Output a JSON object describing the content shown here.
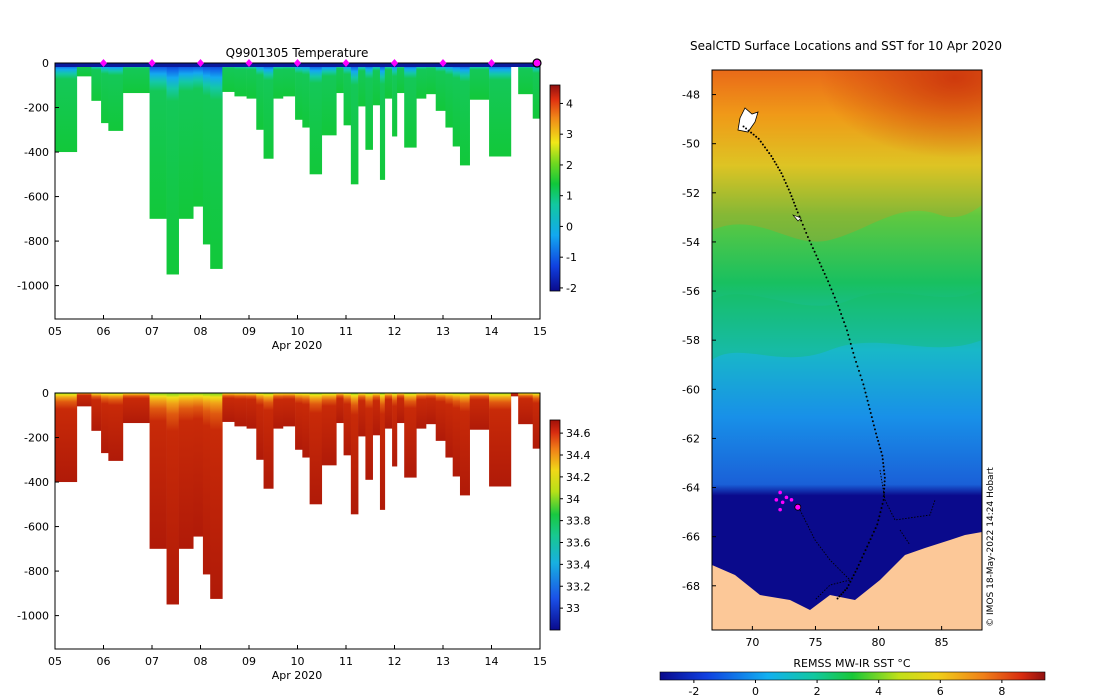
{
  "chart_data": [
    {
      "type": "heatmap",
      "title": "Q9901305  Temperature",
      "xlabel": "Apr 2020",
      "ylabel": "",
      "x_ticks": [
        "05",
        "06",
        "07",
        "08",
        "09",
        "10",
        "11",
        "12",
        "13",
        "14",
        "15"
      ],
      "y_ticks": [
        0,
        -200,
        -400,
        -600,
        -800,
        -1000
      ],
      "ylim": [
        -1150,
        0
      ],
      "xlim": [
        5,
        15
      ],
      "colorbar": {
        "ticks": [
          4,
          3,
          2,
          1,
          0,
          -1,
          -2
        ],
        "range": [
          -2.1,
          4.6
        ]
      },
      "profile_markers_days": [
        6,
        7,
        8,
        9,
        10,
        11,
        12,
        13,
        14
      ],
      "profiles": [
        {
          "t0": 5.0,
          "t1": 5.45,
          "depth": 400
        },
        {
          "t0": 5.45,
          "t1": 5.75,
          "depth": 60
        },
        {
          "t0": 5.75,
          "t1": 5.95,
          "depth": 170
        },
        {
          "t0": 5.95,
          "t1": 6.1,
          "depth": 270
        },
        {
          "t0": 6.1,
          "t1": 6.4,
          "depth": 305
        },
        {
          "t0": 6.4,
          "t1": 6.95,
          "depth": 135
        },
        {
          "t0": 6.95,
          "t1": 7.3,
          "depth": 700
        },
        {
          "t0": 7.3,
          "t1": 7.55,
          "depth": 950
        },
        {
          "t0": 7.55,
          "t1": 7.85,
          "depth": 700
        },
        {
          "t0": 7.85,
          "t1": 8.05,
          "depth": 645
        },
        {
          "t0": 8.05,
          "t1": 8.2,
          "depth": 815
        },
        {
          "t0": 8.2,
          "t1": 8.45,
          "depth": 925
        },
        {
          "t0": 8.45,
          "t1": 8.7,
          "depth": 130
        },
        {
          "t0": 8.7,
          "t1": 8.95,
          "depth": 150
        },
        {
          "t0": 8.95,
          "t1": 9.15,
          "depth": 160
        },
        {
          "t0": 9.15,
          "t1": 9.3,
          "depth": 300
        },
        {
          "t0": 9.3,
          "t1": 9.5,
          "depth": 430
        },
        {
          "t0": 9.5,
          "t1": 9.7,
          "depth": 160
        },
        {
          "t0": 9.7,
          "t1": 9.95,
          "depth": 150
        },
        {
          "t0": 9.95,
          "t1": 10.1,
          "depth": 255
        },
        {
          "t0": 10.1,
          "t1": 10.25,
          "depth": 290
        },
        {
          "t0": 10.25,
          "t1": 10.5,
          "depth": 500
        },
        {
          "t0": 10.5,
          "t1": 10.8,
          "depth": 325
        },
        {
          "t0": 10.8,
          "t1": 10.95,
          "depth": 135
        },
        {
          "t0": 10.95,
          "t1": 11.1,
          "depth": 280
        },
        {
          "t0": 11.1,
          "t1": 11.25,
          "depth": 545
        },
        {
          "t0": 11.25,
          "t1": 11.4,
          "depth": 195
        },
        {
          "t0": 11.4,
          "t1": 11.55,
          "depth": 390
        },
        {
          "t0": 11.55,
          "t1": 11.7,
          "depth": 190
        },
        {
          "t0": 11.7,
          "t1": 11.8,
          "depth": 525
        },
        {
          "t0": 11.8,
          "t1": 11.95,
          "depth": 160
        },
        {
          "t0": 11.95,
          "t1": 12.05,
          "depth": 330
        },
        {
          "t0": 12.05,
          "t1": 12.2,
          "depth": 135
        },
        {
          "t0": 12.2,
          "t1": 12.45,
          "depth": 380
        },
        {
          "t0": 12.45,
          "t1": 12.65,
          "depth": 160
        },
        {
          "t0": 12.65,
          "t1": 12.85,
          "depth": 140
        },
        {
          "t0": 12.85,
          "t1": 13.05,
          "depth": 215
        },
        {
          "t0": 13.05,
          "t1": 13.2,
          "depth": 290
        },
        {
          "t0": 13.2,
          "t1": 13.35,
          "depth": 375
        },
        {
          "t0": 13.35,
          "t1": 13.55,
          "depth": 460
        },
        {
          "t0": 13.55,
          "t1": 13.95,
          "depth": 165
        },
        {
          "t0": 13.95,
          "t1": 14.4,
          "depth": 420
        },
        {
          "t0": 14.4,
          "t1": 14.55,
          "depth": 15
        },
        {
          "t0": 14.55,
          "t1": 14.85,
          "depth": 140
        },
        {
          "t0": 14.85,
          "t1": 15.05,
          "depth": 250
        }
      ]
    },
    {
      "type": "heatmap",
      "title": "",
      "xlabel": "Apr 2020",
      "ylabel": "",
      "x_ticks": [
        "05",
        "06",
        "07",
        "08",
        "09",
        "10",
        "11",
        "12",
        "13",
        "14",
        "15"
      ],
      "y_ticks": [
        0,
        -200,
        -400,
        -600,
        -800,
        -1000
      ],
      "ylim": [
        -1150,
        0
      ],
      "xlim": [
        5,
        15
      ],
      "colorbar": {
        "ticks": [
          "34.6",
          "34.4",
          "34.2",
          "34",
          "33.8",
          "33.6",
          "33.4",
          "33.2",
          "33"
        ],
        "range": [
          32.8,
          34.72
        ]
      }
    },
    {
      "type": "heatmap",
      "title": "SealCTD Surface Locations and SST for 10 Apr 2020",
      "xlabel": "REMSS MW-IR SST °C",
      "x_ticks": [
        "70",
        "75",
        "80",
        "85"
      ],
      "y_ticks": [
        "-48",
        "-50",
        "-52",
        "-54",
        "-56",
        "-58",
        "-60",
        "-62",
        "-64",
        "-66",
        "-68"
      ],
      "xlim": [
        66.8,
        88.2
      ],
      "ylim": [
        -69.8,
        -47.0
      ],
      "colorbar": {
        "ticks": [
          "-2",
          "0",
          "2",
          "4",
          "6",
          "8"
        ],
        "range": [
          -3.1,
          9.4
        ]
      },
      "credit": "© IMOS 18-May-2022 14:24 Hobart",
      "track": [
        [
          69.3,
          -49.3
        ],
        [
          70.5,
          -49.8
        ],
        [
          71.5,
          -50.5
        ],
        [
          72.3,
          -51.2
        ],
        [
          73.0,
          -52.0
        ],
        [
          73.6,
          -52.8
        ],
        [
          74.4,
          -53.8
        ],
        [
          75.2,
          -54.7
        ],
        [
          76.0,
          -55.6
        ],
        [
          76.8,
          -56.6
        ],
        [
          77.5,
          -57.6
        ],
        [
          78.1,
          -58.7
        ],
        [
          78.8,
          -59.8
        ],
        [
          79.3,
          -60.8
        ],
        [
          79.8,
          -61.8
        ],
        [
          80.3,
          -62.7
        ],
        [
          80.5,
          -63.6
        ],
        [
          80.4,
          -64.5
        ],
        [
          79.9,
          -65.5
        ],
        [
          79.1,
          -66.4
        ],
        [
          78.3,
          -67.3
        ],
        [
          77.5,
          -68.1
        ],
        [
          76.6,
          -68.6
        ]
      ],
      "surface_locations": [
        [
          72.2,
          -64.2
        ],
        [
          72.7,
          -64.4
        ],
        [
          73.1,
          -64.5
        ],
        [
          72.4,
          -64.6
        ],
        [
          71.9,
          -64.5
        ],
        [
          72.2,
          -64.9
        ],
        [
          73.6,
          -64.8
        ]
      ],
      "latest_location": [
        73.6,
        -64.8
      ]
    }
  ],
  "colors": {
    "marker": "#ff00ff",
    "land": "#fcc898"
  }
}
